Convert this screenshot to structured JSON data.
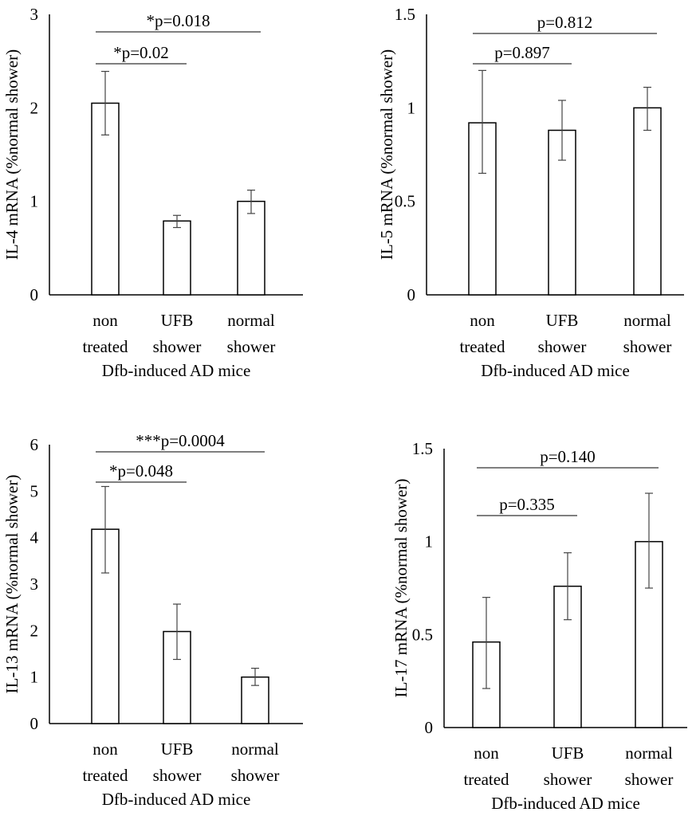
{
  "chart_data": [
    {
      "type": "bar",
      "ylabel": "IL-4 mRNA (%normal shower)",
      "xlabel": "Dfb-induced AD mice",
      "categories": [
        [
          "non",
          "treated"
        ],
        [
          "UFB",
          "shower"
        ],
        [
          "normal",
          "shower"
        ]
      ],
      "values": [
        2.05,
        0.79,
        1.0
      ],
      "error_upper": [
        2.39,
        0.85,
        1.12
      ],
      "error_lower": [
        1.71,
        0.72,
        0.87
      ],
      "ylim": [
        0,
        3
      ],
      "yticks": [
        0,
        1,
        2,
        3
      ],
      "ytick_labels": [
        "0",
        "1",
        "2",
        "3"
      ],
      "annotations": [
        {
          "from": 0,
          "to": 2,
          "text": "*p=0.018"
        },
        {
          "from": 0,
          "to": 1,
          "text": "*p=0.02"
        }
      ]
    },
    {
      "type": "bar",
      "ylabel": "IL-5 mRNA (%normal shower)",
      "xlabel": "Dfb-induced AD mice",
      "categories": [
        [
          "non",
          "treated"
        ],
        [
          "UFB",
          "shower"
        ],
        [
          "normal",
          "shower"
        ]
      ],
      "values": [
        0.92,
        0.88,
        1.0
      ],
      "error_upper": [
        1.2,
        1.04,
        1.11
      ],
      "error_lower": [
        0.65,
        0.72,
        0.88
      ],
      "ylim": [
        0,
        1.5
      ],
      "yticks": [
        0,
        0.5,
        1,
        1.5
      ],
      "ytick_labels": [
        "0",
        "0.5",
        "1",
        "1.5"
      ],
      "annotations": [
        {
          "from": 0,
          "to": 2,
          "text": "p=0.812"
        },
        {
          "from": 0,
          "to": 1,
          "text": "p=0.897"
        }
      ]
    },
    {
      "type": "bar",
      "ylabel": "IL-13 mRNA (%normal shower)",
      "xlabel": "Dfb-induced AD mice",
      "categories": [
        [
          "non",
          "treated"
        ],
        [
          "UFB",
          "shower"
        ],
        [
          "normal",
          "shower"
        ]
      ],
      "values": [
        4.18,
        1.98,
        1.0
      ],
      "error_upper": [
        5.1,
        2.57,
        1.19
      ],
      "error_lower": [
        3.24,
        1.38,
        0.82
      ],
      "ylim": [
        0,
        6
      ],
      "yticks": [
        0,
        1,
        2,
        3,
        4,
        5,
        6
      ],
      "ytick_labels": [
        "0",
        "1",
        "2",
        "3",
        "4",
        "5",
        "6"
      ],
      "annotations": [
        {
          "from": 0,
          "to": 2,
          "text": "***p=0.0004"
        },
        {
          "from": 0,
          "to": 1,
          "text": "*p=0.048"
        }
      ]
    },
    {
      "type": "bar",
      "ylabel": "IL-17 mRNA (%normal shower)",
      "xlabel": "Dfb-induced AD mice",
      "categories": [
        [
          "non",
          "treated"
        ],
        [
          "UFB",
          "shower"
        ],
        [
          "normal",
          "shower"
        ]
      ],
      "values": [
        0.46,
        0.76,
        1.0
      ],
      "error_upper": [
        0.7,
        0.94,
        1.26
      ],
      "error_lower": [
        0.21,
        0.58,
        0.75
      ],
      "ylim": [
        0,
        1.5
      ],
      "yticks": [
        0,
        0.5,
        1,
        1.5
      ],
      "ytick_labels": [
        "0",
        "0.5",
        "1",
        "1.5"
      ],
      "annotations": [
        {
          "from": 0,
          "to": 2,
          "text": "p=0.140"
        },
        {
          "from": 0,
          "to": 1,
          "text": "p=0.335"
        }
      ]
    }
  ]
}
